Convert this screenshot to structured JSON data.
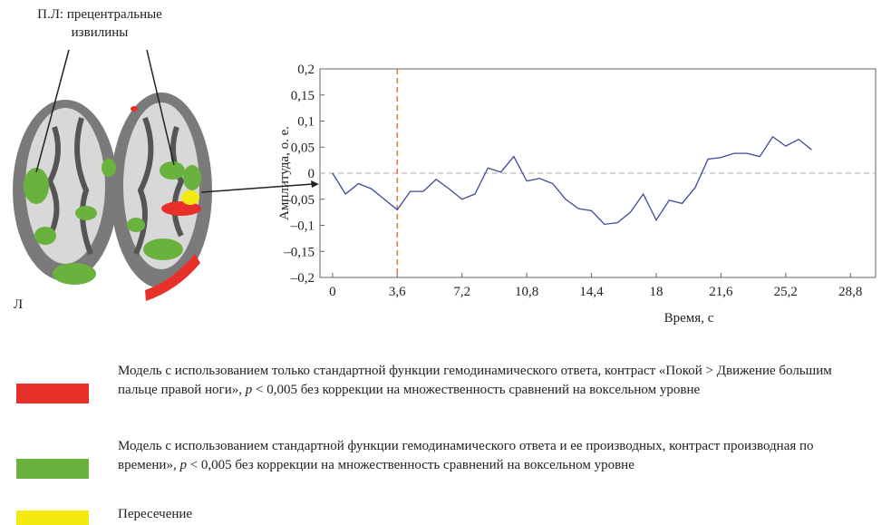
{
  "chart_data": {
    "type": "line",
    "ylabel": "Амплитуда, о. е.",
    "xlabel": "Время, с",
    "annotation": "П.Л: прецентральные извилины",
    "side_label": "Л",
    "x": [
      0,
      0.72,
      1.44,
      2.16,
      2.88,
      3.6,
      4.32,
      5.04,
      5.76,
      6.48,
      7.2,
      7.92,
      8.64,
      9.36,
      10.08,
      10.8,
      11.52,
      12.24,
      12.96,
      13.68,
      14.4,
      15.12,
      15.84,
      16.56,
      17.28,
      18,
      18.72,
      19.44,
      20.16,
      20.88,
      21.6,
      22.32,
      23.04,
      23.76,
      24.48,
      25.2,
      25.92,
      26.64
    ],
    "series": [
      {
        "color": "#3b4a9c",
        "values": [
          0,
          -0.04,
          -0.02,
          -0.03,
          -0.05,
          -0.07,
          -0.035,
          -0.035,
          -0.012,
          -0.03,
          -0.05,
          -0.04,
          0.01,
          0.002,
          0.032,
          -0.015,
          -0.01,
          -0.02,
          -0.05,
          -0.068,
          -0.072,
          -0.098,
          -0.095,
          -0.075,
          -0.04,
          -0.09,
          -0.052,
          -0.058,
          -0.028,
          0.027,
          0.03,
          0.038,
          0.038,
          0.032,
          0.07,
          0.052,
          0.065,
          0.045
        ]
      }
    ],
    "xlim": [
      -0.7,
      30.2
    ],
    "ylim": [
      -0.2,
      0.2
    ],
    "xticks": [
      0,
      {
        "value": 3.6,
        "label": "3,6"
      },
      {
        "value": 7.2,
        "label": "7,2"
      },
      {
        "value": 10.8,
        "label": "10,8"
      },
      {
        "value": 14.4,
        "label": "14,4"
      },
      18,
      {
        "value": 21.6,
        "label": "21,6"
      },
      {
        "value": 25.2,
        "label": "25,2"
      },
      {
        "value": 28.8,
        "label": "28,8"
      }
    ],
    "yticks": [
      {
        "value": -0.2,
        "label": "–0,2"
      },
      {
        "value": -0.15,
        "label": "–0,15"
      },
      {
        "value": -0.1,
        "label": "–0,1"
      },
      {
        "value": -0.05,
        "label": "–0,05"
      },
      0,
      {
        "value": 0.05,
        "label": "0,05"
      },
      {
        "value": 0.1,
        "label": "0,1"
      },
      {
        "value": 0.15,
        "label": "0,15"
      },
      {
        "value": 0.2,
        "label": "0,2"
      }
    ],
    "vline": {
      "x": 3.6,
      "color": "#e07a3a"
    },
    "hline": {
      "y": 0,
      "color": "#aaaaaa"
    },
    "legend": [
      {
        "color": "#e8302b",
        "text": [
          "Модель с использованием только стандартной функции гемодинамического ответа, контраст «Покой > Движение большим пальце правой ноги», ",
          "p",
          " < 0,005 без коррекции на множественность сравнений на воксельном уровне"
        ]
      },
      {
        "color": "#6ab23e",
        "text": [
          "Модель с использованием стандартной функции гемодинамического ответа и ее производных, контраст производная по времени», ",
          "p",
          " < 0,005 без коррекции на множественность сравнений на воксельном уровне"
        ]
      },
      {
        "color": "#f2ea10",
        "text": [
          "Пересечение"
        ]
      }
    ]
  }
}
